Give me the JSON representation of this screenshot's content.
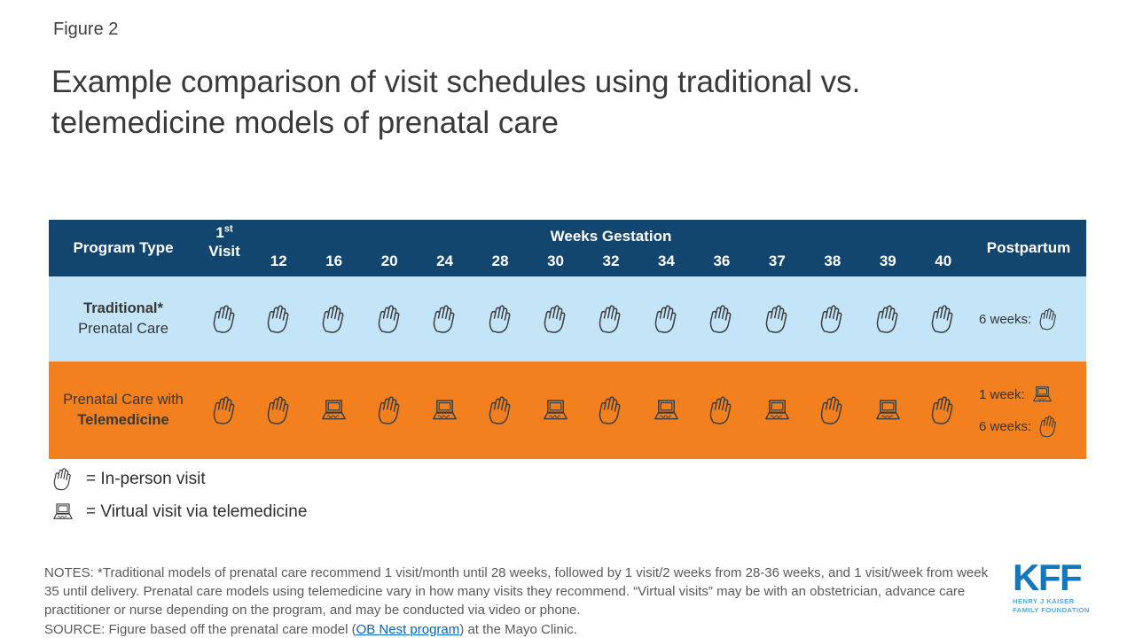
{
  "figure_label": "Figure 2",
  "title": {
    "line1": "Example comparison of visit schedules using traditional vs.",
    "line2": "telemedicine models of prenatal care"
  },
  "table": {
    "header": {
      "program_type": "Program Type",
      "first_visit_num": "1",
      "first_visit_sup": "st",
      "first_visit_word": "Visit",
      "weeks_gestation": "Weeks Gestation",
      "postpartum": "Postpartum"
    },
    "weeks": [
      "12",
      "16",
      "20",
      "24",
      "28",
      "30",
      "32",
      "34",
      "36",
      "37",
      "38",
      "39",
      "40"
    ],
    "rows": [
      {
        "label_line1": "Traditional*",
        "label_line2": "Prenatal Care",
        "cells": [
          "hand",
          "hand",
          "hand",
          "hand",
          "hand",
          "hand",
          "hand",
          "hand",
          "hand",
          "hand",
          "hand",
          "hand",
          "hand",
          "hand"
        ],
        "postpartum": [
          {
            "label": "6 weeks:",
            "icon": "hand"
          }
        ]
      },
      {
        "label_line1": "Prenatal Care with",
        "label_line2": "Telemedicine",
        "cells": [
          "hand",
          "hand",
          "laptop",
          "hand",
          "laptop",
          "hand",
          "laptop",
          "hand",
          "laptop",
          "hand",
          "laptop",
          "hand",
          "laptop",
          "hand"
        ],
        "postpartum": [
          {
            "label": "1 week:",
            "icon": "laptop"
          },
          {
            "label": "6 weeks:",
            "icon": "hand"
          }
        ]
      }
    ]
  },
  "legend": [
    {
      "icon": "hand",
      "label": "= In-person visit"
    },
    {
      "icon": "laptop",
      "label": "= Virtual visit via telemedicine"
    }
  ],
  "notes": "NOTES: *Traditional models of prenatal care recommend 1 visit/month until 28 weeks, followed by 1 visit/2 weeks from 28-36 weeks, and 1 visit/week from week 35 until delivery. Prenatal care models using telemedicine vary in how many visits they recommend. “Virtual visits” may be with an obstetrician, advance care practitioner or nurse depending on the program, and may be conducted via video or phone.",
  "source": {
    "prefix": "SOURCE: Figure based off the prenatal care model (",
    "link_text": "OB Nest program",
    "suffix": ") at the Mayo Clinic."
  },
  "logo": {
    "word": "KFF",
    "tagline_line1": "HENRY J KAISER",
    "tagline_line2": "FAMILY FOUNDATION"
  },
  "colors": {
    "header_navy": "#12466F",
    "traditional_row_blue": "#C4E4F8",
    "telemedicine_row_orange": "#F2801F",
    "link_blue": "#0563C1",
    "kff_blue": "#1377BC"
  },
  "chart_data": {
    "type": "table",
    "title": "Example comparison of visit schedules using traditional vs. telemedicine models of prenatal care",
    "columns": [
      "Program Type",
      "1st Visit",
      "12",
      "16",
      "20",
      "24",
      "28",
      "30",
      "32",
      "34",
      "36",
      "37",
      "38",
      "39",
      "40",
      "Postpartum"
    ],
    "column_group": {
      "label": "Weeks Gestation",
      "spans": [
        "12",
        "16",
        "20",
        "24",
        "28",
        "30",
        "32",
        "34",
        "36",
        "37",
        "38",
        "39",
        "40"
      ]
    },
    "rows": [
      {
        "program": "Traditional* Prenatal Care",
        "visits": {
          "1st Visit": "in-person",
          "12": "in-person",
          "16": "in-person",
          "20": "in-person",
          "24": "in-person",
          "28": "in-person",
          "30": "in-person",
          "32": "in-person",
          "34": "in-person",
          "36": "in-person",
          "37": "in-person",
          "38": "in-person",
          "39": "in-person",
          "40": "in-person"
        },
        "postpartum": [
          {
            "timing": "6 weeks",
            "type": "in-person"
          }
        ]
      },
      {
        "program": "Prenatal Care with Telemedicine",
        "visits": {
          "1st Visit": "in-person",
          "12": "in-person",
          "16": "virtual",
          "20": "in-person",
          "24": "virtual",
          "28": "in-person",
          "30": "virtual",
          "32": "in-person",
          "34": "virtual",
          "36": "in-person",
          "37": "virtual",
          "38": "in-person",
          "39": "virtual",
          "40": "in-person"
        },
        "postpartum": [
          {
            "timing": "1 week",
            "type": "virtual"
          },
          {
            "timing": "6 weeks",
            "type": "in-person"
          }
        ]
      }
    ],
    "legend": {
      "hand": "In-person visit",
      "laptop": "Virtual visit via telemedicine"
    }
  }
}
